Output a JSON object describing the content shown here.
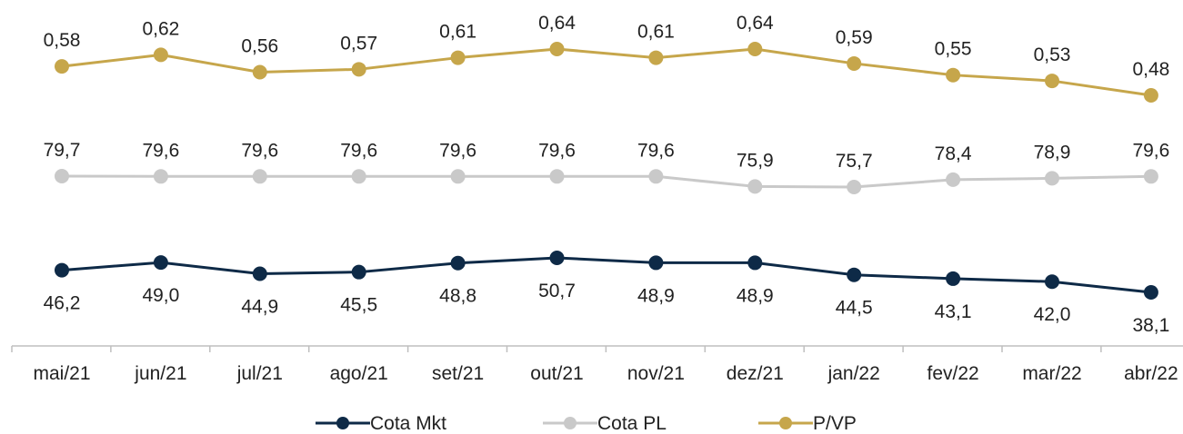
{
  "chart_data": {
    "type": "line",
    "categories": [
      "mai/21",
      "jun/21",
      "jul/21",
      "ago/21",
      "set/21",
      "out/21",
      "nov/21",
      "dez/21",
      "jan/22",
      "fev/22",
      "mar/22",
      "abr/22"
    ],
    "series": [
      {
        "name": "Cota Mkt",
        "color": "#0e2a47",
        "values": [
          46.2,
          49.0,
          44.9,
          45.5,
          48.8,
          50.7,
          48.9,
          48.9,
          44.5,
          43.1,
          42.0,
          38.1
        ],
        "labels": [
          "46,2",
          "49,0",
          "44,9",
          "45,5",
          "48,8",
          "50,7",
          "48,9",
          "48,9",
          "44,5",
          "43,1",
          "42,0",
          "38,1"
        ],
        "label_position": "below"
      },
      {
        "name": "Cota PL",
        "color": "#c9c9c9",
        "values": [
          79.7,
          79.6,
          79.6,
          79.6,
          79.6,
          79.6,
          79.6,
          75.9,
          75.7,
          78.4,
          78.9,
          79.6
        ],
        "labels": [
          "79,7",
          "79,6",
          "79,6",
          "79,6",
          "79,6",
          "79,6",
          "79,6",
          "75,9",
          "75,7",
          "78,4",
          "78,9",
          "79,6"
        ],
        "label_position": "above"
      },
      {
        "name": "P/VP",
        "color": "#c6a64b",
        "values": [
          0.58,
          0.62,
          0.56,
          0.57,
          0.61,
          0.64,
          0.61,
          0.64,
          0.59,
          0.55,
          0.53,
          0.48
        ],
        "labels": [
          "0,58",
          "0,62",
          "0,56",
          "0,57",
          "0,61",
          "0,64",
          "0,61",
          "0,64",
          "0,59",
          "0,55",
          "0,53",
          "0,48"
        ],
        "label_position": "above"
      }
    ],
    "legend": {
      "position": "bottom"
    },
    "grid": false
  }
}
